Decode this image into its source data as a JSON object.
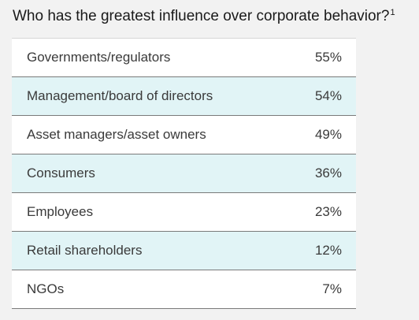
{
  "chart_data": {
    "type": "table",
    "title": "Who has the greatest influence over corporate behavior?",
    "title_footnote": "1",
    "row_colors": [
      "#ffffff",
      "#e1f4f6"
    ],
    "rows": [
      {
        "label": "Governments/regulators",
        "value": 55,
        "display": "55%"
      },
      {
        "label": "Management/board of directors",
        "value": 54,
        "display": "54%"
      },
      {
        "label": "Asset managers/asset owners",
        "value": 49,
        "display": "49%"
      },
      {
        "label": "Consumers",
        "value": 36,
        "display": "36%"
      },
      {
        "label": "Employees",
        "value": 23,
        "display": "23%"
      },
      {
        "label": "Retail shareholders",
        "value": 12,
        "display": "12%"
      },
      {
        "label": "NGOs",
        "value": 7,
        "display": "7%"
      }
    ]
  }
}
